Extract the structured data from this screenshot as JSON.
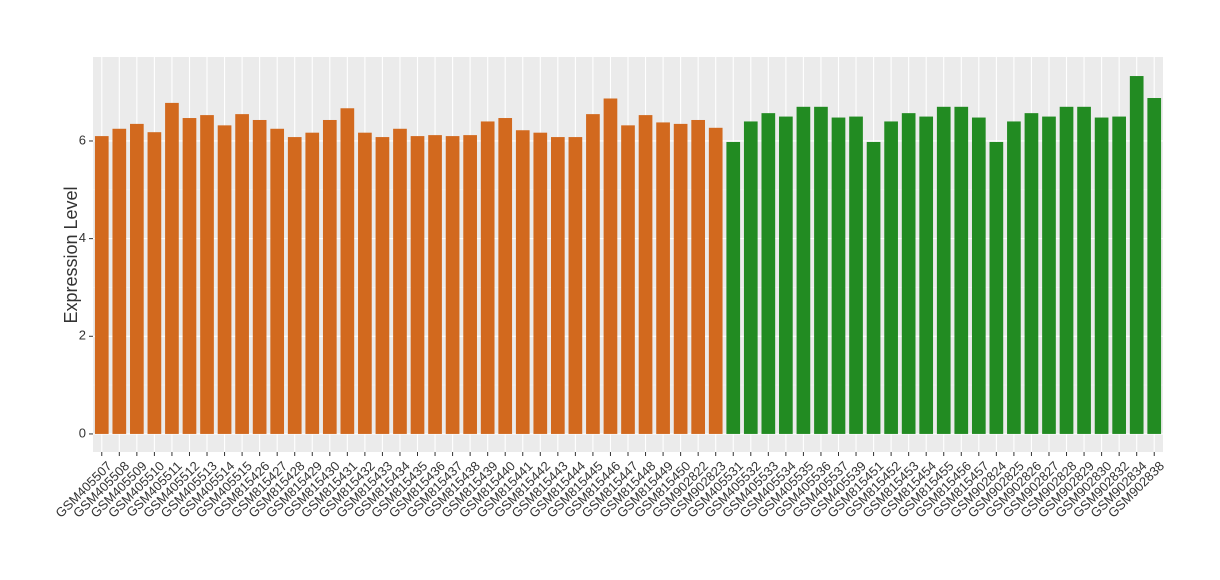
{
  "chart_data": {
    "type": "bar",
    "y_label": "Expression Level",
    "categories": [
      "GSM405507",
      "GSM405508",
      "GSM405509",
      "GSM405510",
      "GSM405511",
      "GSM405512",
      "GSM405513",
      "GSM405514",
      "GSM405515",
      "GSM815426",
      "GSM815427",
      "GSM815428",
      "GSM815429",
      "GSM815430",
      "GSM815431",
      "GSM815432",
      "GSM815433",
      "GSM815434",
      "GSM815435",
      "GSM815436",
      "GSM815437",
      "GSM815438",
      "GSM815439",
      "GSM815440",
      "GSM815441",
      "GSM815442",
      "GSM815443",
      "GSM815444",
      "GSM815445",
      "GSM815446",
      "GSM815447",
      "GSM815448",
      "GSM815449",
      "GSM815450",
      "GSM902822",
      "GSM902823",
      "GSM405531",
      "GSM405532",
      "GSM405533",
      "GSM405534",
      "GSM405535",
      "GSM405536",
      "GSM405537",
      "GSM405539",
      "GSM815451",
      "GSM815452",
      "GSM815453",
      "GSM815454",
      "GSM815455",
      "GSM815456",
      "GSM815457",
      "GSM902824",
      "GSM902825",
      "GSM902826",
      "GSM902827",
      "GSM902828",
      "GSM902829",
      "GSM902830",
      "GSM902832",
      "GSM902834",
      "GSM902838"
    ],
    "values": [
      6.1,
      6.25,
      6.35,
      6.18,
      6.78,
      6.47,
      6.53,
      6.32,
      6.55,
      6.43,
      6.25,
      6.08,
      6.17,
      6.43,
      6.67,
      6.17,
      6.08,
      6.25,
      6.1,
      6.12,
      6.1,
      6.12,
      6.4,
      6.47,
      6.22,
      6.17,
      6.08,
      6.08,
      6.55,
      6.87,
      6.32,
      6.53,
      6.38,
      6.35,
      6.43,
      6.27,
      5.98,
      6.4,
      6.57,
      6.5,
      6.7,
      6.7,
      6.48,
      6.5,
      5.98,
      6.4,
      6.57,
      6.5,
      6.7,
      6.7,
      6.48,
      5.98,
      6.4,
      6.57,
      6.5,
      6.7,
      6.7,
      6.48,
      6.5,
      7.33,
      6.88
    ],
    "colors": [
      "#d2691e",
      "#d2691e",
      "#d2691e",
      "#d2691e",
      "#d2691e",
      "#d2691e",
      "#d2691e",
      "#d2691e",
      "#d2691e",
      "#d2691e",
      "#d2691e",
      "#d2691e",
      "#d2691e",
      "#d2691e",
      "#d2691e",
      "#d2691e",
      "#d2691e",
      "#d2691e",
      "#d2691e",
      "#d2691e",
      "#d2691e",
      "#d2691e",
      "#d2691e",
      "#d2691e",
      "#d2691e",
      "#d2691e",
      "#d2691e",
      "#d2691e",
      "#d2691e",
      "#d2691e",
      "#d2691e",
      "#d2691e",
      "#d2691e",
      "#d2691e",
      "#d2691e",
      "#d2691e",
      "#228b22",
      "#228b22",
      "#228b22",
      "#228b22",
      "#228b22",
      "#228b22",
      "#228b22",
      "#228b22",
      "#228b22",
      "#228b22",
      "#228b22",
      "#228b22",
      "#228b22",
      "#228b22",
      "#228b22",
      "#228b22",
      "#228b22",
      "#228b22",
      "#228b22",
      "#228b22",
      "#228b22",
      "#228b22",
      "#228b22",
      "#228b22",
      "#228b22"
    ],
    "ylim": [
      -0.37,
      7.72
    ],
    "yticks": [
      0,
      2,
      4,
      6
    ],
    "grid": true
  }
}
